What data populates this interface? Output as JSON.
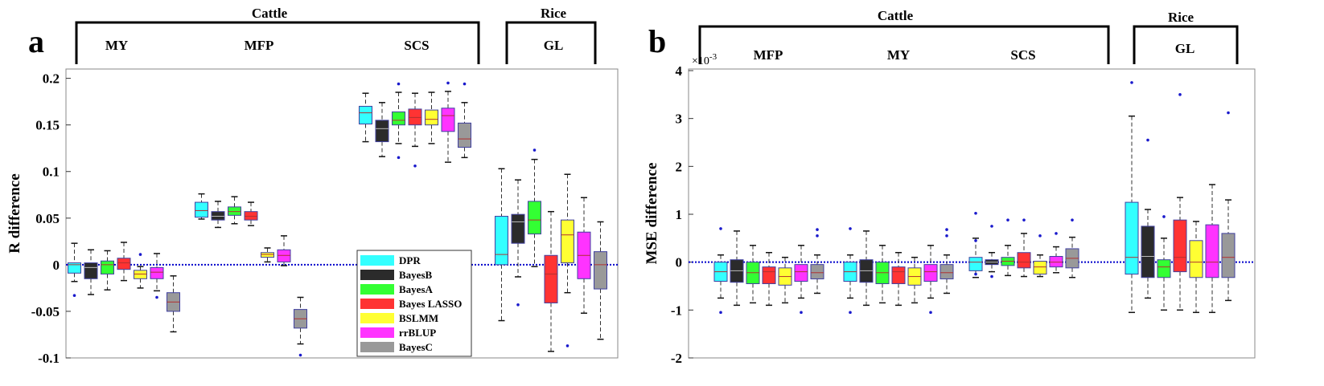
{
  "colors": {
    "DPR": "#33ffff",
    "BayesB": "#2b2b2b",
    "BayesA": "#33ff33",
    "Bayes LASSO": "#ff3333",
    "BSLMM": "#ffff33",
    "rrBLUP": "#ff33ff",
    "BayesC": "#999999"
  },
  "legend_order": [
    "DPR",
    "BayesB",
    "BayesA",
    "Bayes LASSO",
    "BSLMM",
    "rrBLUP",
    "BayesC"
  ],
  "chart_data": [
    {
      "type": "box",
      "panel_letter": "a",
      "ylabel": "R difference",
      "ylim": [
        -0.1,
        0.21
      ],
      "yticks": [
        -0.1,
        -0.05,
        0,
        0.05,
        0.1,
        0.15,
        0.2
      ],
      "yticklabels": [
        "-0.1",
        "-0.05",
        "0",
        "0.05",
        "0.1",
        "0.15",
        "0.2"
      ],
      "zero_line": true,
      "groups_header": [
        {
          "label": "Cattle",
          "span": [
            "MY",
            "SCS"
          ]
        },
        {
          "label": "Rice",
          "span": [
            "GL",
            "GL"
          ]
        }
      ],
      "groups": [
        {
          "label": "MY",
          "boxes": [
            {
              "method": "DPR",
              "q1": -0.009,
              "med": 0.0,
              "q3": 0.002,
              "wlo": -0.018,
              "whi": 0.023,
              "outliers": [
                -0.033
              ]
            },
            {
              "method": "BayesB",
              "q1": -0.015,
              "med": -0.003,
              "q3": 0.002,
              "wlo": -0.032,
              "whi": 0.016,
              "outliers": []
            },
            {
              "method": "BayesA",
              "q1": -0.01,
              "med": 0.0,
              "q3": 0.004,
              "wlo": -0.027,
              "whi": 0.015,
              "outliers": []
            },
            {
              "method": "Bayes LASSO",
              "q1": -0.005,
              "med": 0.002,
              "q3": 0.007,
              "wlo": -0.017,
              "whi": 0.024,
              "outliers": []
            },
            {
              "method": "BSLMM",
              "q1": -0.015,
              "med": -0.01,
              "q3": -0.006,
              "wlo": -0.025,
              "whi": -0.002,
              "outliers": [
                0.011
              ]
            },
            {
              "method": "rrBLUP",
              "q1": -0.015,
              "med": -0.008,
              "q3": -0.003,
              "wlo": -0.028,
              "whi": 0.012,
              "outliers": [
                -0.035
              ]
            },
            {
              "method": "BayesC",
              "q1": -0.05,
              "med": -0.04,
              "q3": -0.03,
              "wlo": -0.072,
              "whi": -0.012,
              "outliers": []
            }
          ]
        },
        {
          "label": "MFP",
          "boxes": [
            {
              "method": "DPR",
              "q1": 0.051,
              "med": 0.058,
              "q3": 0.067,
              "wlo": 0.049,
              "whi": 0.076,
              "outliers": []
            },
            {
              "method": "BayesB",
              "q1": 0.048,
              "med": 0.052,
              "q3": 0.057,
              "wlo": 0.04,
              "whi": 0.068,
              "outliers": []
            },
            {
              "method": "BayesA",
              "q1": 0.053,
              "med": 0.057,
              "q3": 0.062,
              "wlo": 0.044,
              "whi": 0.073,
              "outliers": []
            },
            {
              "method": "Bayes LASSO",
              "q1": 0.048,
              "med": 0.052,
              "q3": 0.057,
              "wlo": 0.042,
              "whi": 0.067,
              "outliers": []
            },
            {
              "method": "BSLMM",
              "q1": 0.008,
              "med": 0.011,
              "q3": 0.013,
              "wlo": 0.003,
              "whi": 0.018,
              "outliers": []
            },
            {
              "method": "rrBLUP",
              "q1": 0.003,
              "med": 0.01,
              "q3": 0.016,
              "wlo": -0.001,
              "whi": 0.031,
              "outliers": []
            },
            {
              "method": "BayesC",
              "q1": -0.068,
              "med": -0.058,
              "q3": -0.048,
              "wlo": -0.085,
              "whi": -0.035,
              "outliers": [
                -0.097
              ]
            }
          ]
        },
        {
          "label": "SCS",
          "boxes": [
            {
              "method": "DPR",
              "q1": 0.151,
              "med": 0.163,
              "q3": 0.17,
              "wlo": 0.132,
              "whi": 0.184,
              "outliers": []
            },
            {
              "method": "BayesB",
              "q1": 0.132,
              "med": 0.146,
              "q3": 0.155,
              "wlo": 0.116,
              "whi": 0.174,
              "outliers": []
            },
            {
              "method": "BayesA",
              "q1": 0.15,
              "med": 0.155,
              "q3": 0.164,
              "wlo": 0.13,
              "whi": 0.185,
              "outliers": [
                0.194,
                0.115
              ]
            },
            {
              "method": "Bayes LASSO",
              "q1": 0.15,
              "med": 0.158,
              "q3": 0.167,
              "wlo": 0.127,
              "whi": 0.184,
              "outliers": [
                0.106
              ]
            },
            {
              "method": "BSLMM",
              "q1": 0.15,
              "med": 0.156,
              "q3": 0.166,
              "wlo": 0.13,
              "whi": 0.185,
              "outliers": []
            },
            {
              "method": "rrBLUP",
              "q1": 0.143,
              "med": 0.16,
              "q3": 0.168,
              "wlo": 0.11,
              "whi": 0.186,
              "outliers": [
                0.195
              ]
            },
            {
              "method": "BayesC",
              "q1": 0.126,
              "med": 0.135,
              "q3": 0.152,
              "wlo": 0.115,
              "whi": 0.174,
              "outliers": [
                0.194
              ]
            }
          ]
        },
        {
          "label": "GL",
          "boxes": [
            {
              "method": "DPR",
              "q1": 0.0,
              "med": 0.011,
              "q3": 0.052,
              "wlo": -0.06,
              "whi": 0.103,
              "outliers": []
            },
            {
              "method": "BayesB",
              "q1": 0.023,
              "med": 0.046,
              "q3": 0.054,
              "wlo": -0.013,
              "whi": 0.091,
              "outliers": [
                -0.043
              ]
            },
            {
              "method": "BayesA",
              "q1": 0.033,
              "med": 0.048,
              "q3": 0.068,
              "wlo": -0.002,
              "whi": 0.113,
              "outliers": [
                0.123
              ]
            },
            {
              "method": "Bayes LASSO",
              "q1": -0.041,
              "med": -0.01,
              "q3": 0.01,
              "wlo": -0.093,
              "whi": 0.057,
              "outliers": []
            },
            {
              "method": "BSLMM",
              "q1": 0.002,
              "med": 0.032,
              "q3": 0.048,
              "wlo": -0.03,
              "whi": 0.097,
              "outliers": [
                -0.087
              ]
            },
            {
              "method": "rrBLUP",
              "q1": -0.015,
              "med": 0.01,
              "q3": 0.035,
              "wlo": -0.052,
              "whi": 0.072,
              "outliers": []
            },
            {
              "method": "BayesC",
              "q1": -0.026,
              "med": 0.0,
              "q3": 0.014,
              "wlo": -0.08,
              "whi": 0.046,
              "outliers": []
            }
          ]
        }
      ]
    },
    {
      "type": "box",
      "panel_letter": "b",
      "ylabel": "MSE difference",
      "ylim": [
        -2,
        4
      ],
      "yticks": [
        -2,
        -1,
        0,
        1,
        2,
        3,
        4
      ],
      "yticklabels": [
        "-2",
        "-1",
        "0",
        "1",
        "2",
        "3",
        "4"
      ],
      "y_exponent": "×10",
      "y_exponent_power": "-3",
      "zero_line": true,
      "groups_header": [
        {
          "label": "Cattle",
          "span": [
            "MFP",
            "SCS"
          ]
        },
        {
          "label": "Rice",
          "span": [
            "GL",
            "GL"
          ]
        }
      ],
      "groups": [
        {
          "label": "MFP",
          "boxes": [
            {
              "method": "DPR",
              "q1": -0.4,
              "med": -0.2,
              "q3": 0.0,
              "wlo": -0.75,
              "whi": 0.15,
              "outliers": [
                0.7,
                -1.05
              ]
            },
            {
              "method": "BayesB",
              "q1": -0.42,
              "med": -0.18,
              "q3": 0.05,
              "wlo": -0.9,
              "whi": 0.65,
              "outliers": []
            },
            {
              "method": "BayesA",
              "q1": -0.45,
              "med": -0.22,
              "q3": 0.0,
              "wlo": -0.85,
              "whi": 0.35,
              "outliers": []
            },
            {
              "method": "Bayes LASSO",
              "q1": -0.45,
              "med": -0.2,
              "q3": -0.1,
              "wlo": -0.9,
              "whi": 0.2,
              "outliers": []
            },
            {
              "method": "BSLMM",
              "q1": -0.48,
              "med": -0.3,
              "q3": -0.12,
              "wlo": -0.85,
              "whi": 0.1,
              "outliers": []
            },
            {
              "method": "rrBLUP",
              "q1": -0.4,
              "med": -0.2,
              "q3": -0.05,
              "wlo": -0.75,
              "whi": 0.35,
              "outliers": [
                -1.05
              ]
            },
            {
              "method": "BayesC",
              "q1": -0.35,
              "med": -0.22,
              "q3": -0.05,
              "wlo": -0.65,
              "whi": 0.15,
              "outliers": [
                0.55,
                0.68
              ]
            }
          ]
        },
        {
          "label": "MY",
          "boxes": [
            {
              "method": "DPR",
              "q1": -0.4,
              "med": -0.2,
              "q3": 0.0,
              "wlo": -0.75,
              "whi": 0.15,
              "outliers": [
                0.7,
                -1.05
              ]
            },
            {
              "method": "BayesB",
              "q1": -0.42,
              "med": -0.18,
              "q3": 0.05,
              "wlo": -0.9,
              "whi": 0.65,
              "outliers": []
            },
            {
              "method": "BayesA",
              "q1": -0.45,
              "med": -0.22,
              "q3": 0.0,
              "wlo": -0.85,
              "whi": 0.35,
              "outliers": []
            },
            {
              "method": "Bayes LASSO",
              "q1": -0.45,
              "med": -0.2,
              "q3": -0.1,
              "wlo": -0.9,
              "whi": 0.2,
              "outliers": []
            },
            {
              "method": "BSLMM",
              "q1": -0.48,
              "med": -0.3,
              "q3": -0.12,
              "wlo": -0.85,
              "whi": 0.1,
              "outliers": []
            },
            {
              "method": "rrBLUP",
              "q1": -0.4,
              "med": -0.2,
              "q3": -0.05,
              "wlo": -0.75,
              "whi": 0.35,
              "outliers": [
                -1.05
              ]
            },
            {
              "method": "BayesC",
              "q1": -0.35,
              "med": -0.22,
              "q3": -0.05,
              "wlo": -0.65,
              "whi": 0.15,
              "outliers": [
                0.55,
                0.68
              ]
            }
          ]
        },
        {
          "label": "SCS",
          "boxes": [
            {
              "method": "DPR",
              "q1": -0.18,
              "med": 0.0,
              "q3": 0.1,
              "wlo": -0.32,
              "whi": 0.5,
              "outliers": [
                1.02,
                0.45,
                -0.25
              ]
            },
            {
              "method": "BayesB",
              "q1": -0.05,
              "med": 0.0,
              "q3": 0.05,
              "wlo": -0.2,
              "whi": 0.2,
              "outliers": [
                0.75,
                -0.3
              ]
            },
            {
              "method": "BayesA",
              "q1": -0.07,
              "med": 0.02,
              "q3": 0.1,
              "wlo": -0.28,
              "whi": 0.35,
              "outliers": [
                0.88
              ]
            },
            {
              "method": "Bayes LASSO",
              "q1": -0.12,
              "med": 0.0,
              "q3": 0.2,
              "wlo": -0.3,
              "whi": 0.6,
              "outliers": [
                0.88
              ]
            },
            {
              "method": "BSLMM",
              "q1": -0.25,
              "med": -0.1,
              "q3": 0.02,
              "wlo": -0.3,
              "whi": 0.15,
              "outliers": [
                0.55
              ]
            },
            {
              "method": "rrBLUP",
              "q1": -0.1,
              "med": 0.0,
              "q3": 0.12,
              "wlo": -0.22,
              "whi": 0.32,
              "outliers": [
                0.6
              ]
            },
            {
              "method": "BayesC",
              "q1": -0.12,
              "med": 0.08,
              "q3": 0.28,
              "wlo": -0.32,
              "whi": 0.52,
              "outliers": [
                0.88
              ]
            }
          ]
        },
        {
          "label": "GL",
          "boxes": [
            {
              "method": "DPR",
              "q1": -0.25,
              "med": 0.1,
              "q3": 1.25,
              "wlo": -1.05,
              "whi": 3.05,
              "outliers": [
                3.75
              ]
            },
            {
              "method": "BayesB",
              "q1": -0.32,
              "med": 0.12,
              "q3": 0.75,
              "wlo": -0.75,
              "whi": 1.1,
              "outliers": [
                2.55
              ]
            },
            {
              "method": "BayesA",
              "q1": -0.32,
              "med": -0.1,
              "q3": 0.05,
              "wlo": -1.0,
              "whi": 0.5,
              "outliers": [
                0.95
              ]
            },
            {
              "method": "Bayes LASSO",
              "q1": -0.2,
              "med": 0.1,
              "q3": 0.88,
              "wlo": -1.0,
              "whi": 1.35,
              "outliers": [
                3.5
              ]
            },
            {
              "method": "BSLMM",
              "q1": -0.32,
              "med": 0.0,
              "q3": 0.45,
              "wlo": -1.05,
              "whi": 0.85,
              "outliers": []
            },
            {
              "method": "rrBLUP",
              "q1": -0.32,
              "med": 0.0,
              "q3": 0.78,
              "wlo": -1.05,
              "whi": 1.62,
              "outliers": []
            },
            {
              "method": "BayesC",
              "q1": -0.32,
              "med": 0.1,
              "q3": 0.6,
              "wlo": -0.8,
              "whi": 1.3,
              "outliers": [
                3.12
              ]
            }
          ]
        }
      ]
    }
  ]
}
